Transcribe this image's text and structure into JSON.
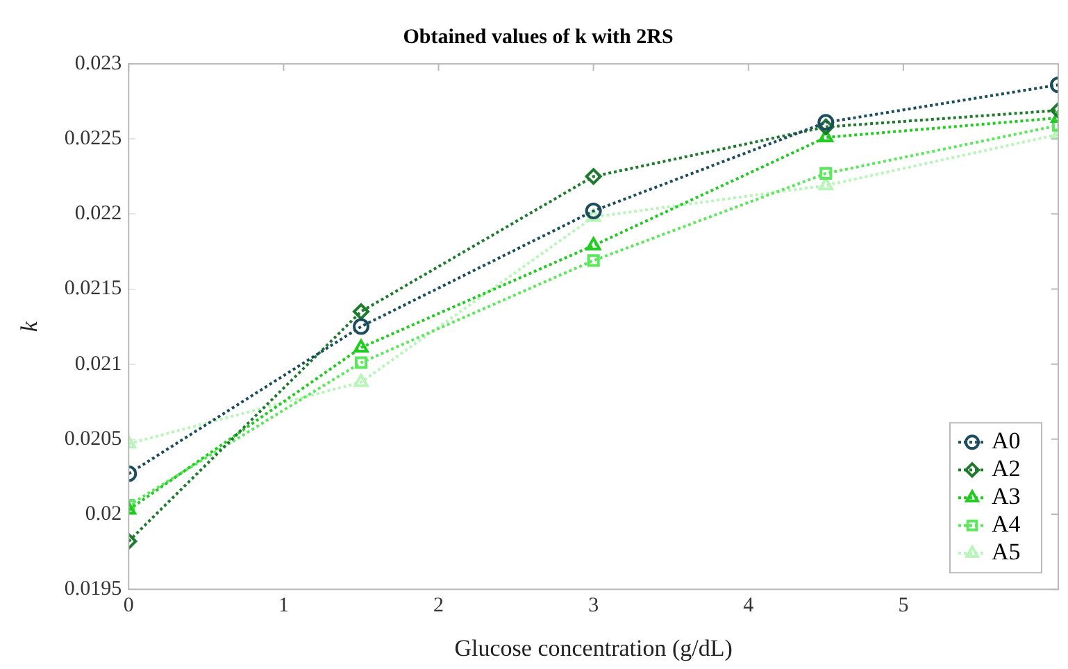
{
  "chart_data": {
    "type": "line",
    "title": "Obtained values of k with 2RS",
    "xlabel": "Glucose concentration (g/dL)",
    "ylabel": "k",
    "x": [
      0,
      1.5,
      3,
      4.5,
      6
    ],
    "series": [
      {
        "name": "A0",
        "color": "#1b4d5c",
        "marker": "circle",
        "values": [
          0.02027,
          0.02125,
          0.02202,
          0.02261,
          0.02286
        ]
      },
      {
        "name": "A2",
        "color": "#1e7a2c",
        "marker": "diamond",
        "values": [
          0.01982,
          0.02135,
          0.02225,
          0.02258,
          0.02269
        ]
      },
      {
        "name": "A3",
        "color": "#1fcc1f",
        "marker": "triangle",
        "values": [
          0.02003,
          0.02111,
          0.02179,
          0.02251,
          0.02264
        ]
      },
      {
        "name": "A4",
        "color": "#5ce85c",
        "marker": "square",
        "values": [
          0.02006,
          0.02101,
          0.02169,
          0.02227,
          0.02259
        ]
      },
      {
        "name": "A5",
        "color": "#b8f5b8",
        "marker": "triangle",
        "values": [
          0.02047,
          0.02088,
          0.02198,
          0.02219,
          0.02253
        ]
      }
    ],
    "xlim": [
      0,
      6
    ],
    "xticks": [
      0,
      1,
      2,
      3,
      4,
      5
    ],
    "ylim": [
      0.0195,
      0.023
    ],
    "yticks": [
      0.0195,
      0.02,
      0.0205,
      0.021,
      0.0215,
      0.022,
      0.0225,
      0.023
    ],
    "grid": false,
    "legend": "bottom right",
    "line_style": "dotted"
  }
}
